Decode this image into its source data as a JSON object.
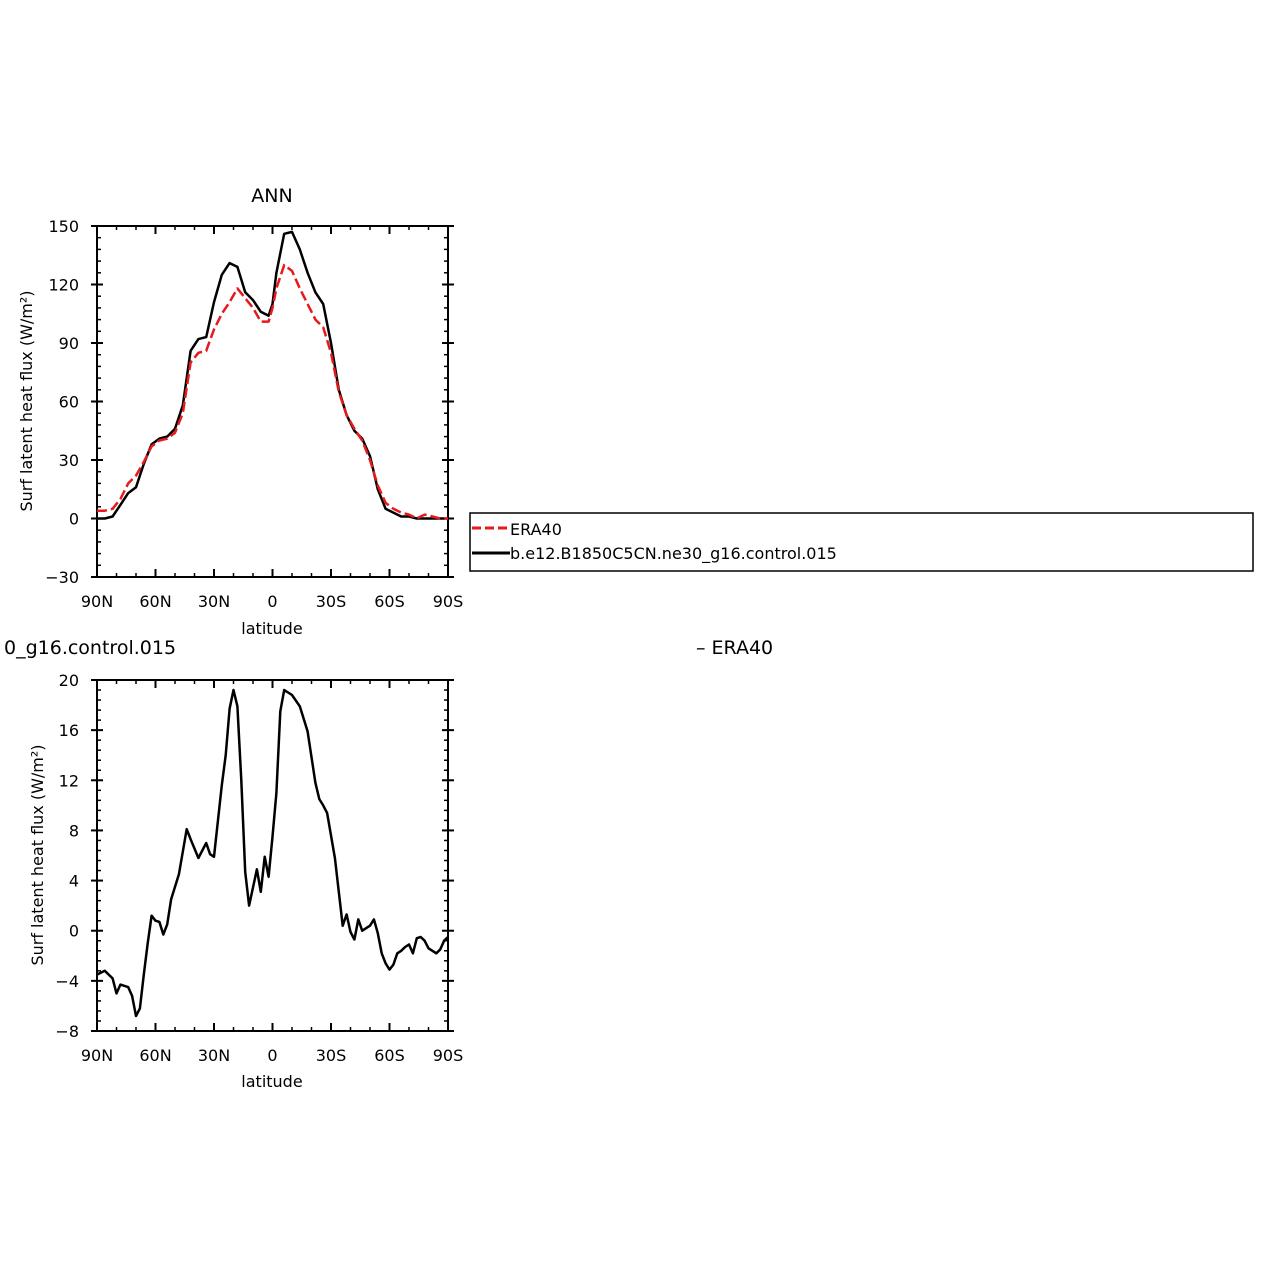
{
  "chart_data": [
    {
      "type": "line",
      "title": "ANN",
      "xlabel": "latitude",
      "ylabel": "Surf latent heat flux (W/m²)",
      "xlim": [
        90,
        -90
      ],
      "ylim": [
        -30,
        150
      ],
      "xticks": [
        90,
        60,
        30,
        0,
        -30,
        -60,
        -90
      ],
      "xtick_labels": [
        "90N",
        "60N",
        "30N",
        "0",
        "30S",
        "60S",
        "90S"
      ],
      "yticks": [
        -30,
        0,
        30,
        60,
        90,
        120,
        150
      ],
      "ytick_labels": [
        "−30",
        "0",
        "30",
        "60",
        "90",
        "120",
        "150"
      ],
      "legend": "right",
      "series": [
        {
          "name": "ERA40",
          "color": "#e8191b",
          "dash": true,
          "x": [
            90,
            86,
            82,
            78,
            74,
            70,
            66,
            62,
            58,
            54,
            50,
            46,
            42,
            38,
            34,
            30,
            26,
            22,
            18,
            14,
            10,
            6,
            2,
            0,
            -2,
            -6,
            -10,
            -14,
            -18,
            -22,
            -26,
            -30,
            -34,
            -38,
            -42,
            -46,
            -50,
            -54,
            -58,
            -62,
            -66,
            -70,
            -74,
            -78,
            -82,
            -86,
            -90
          ],
          "y": [
            4,
            4,
            5,
            10,
            18,
            22,
            29,
            37,
            40,
            41,
            44,
            54,
            80,
            85,
            86,
            97,
            105,
            111,
            118,
            113,
            108,
            101,
            101,
            108,
            118,
            130,
            127,
            118,
            110,
            102,
            98,
            85,
            65,
            53,
            46,
            40,
            30,
            17,
            8,
            5,
            3,
            2,
            0,
            2,
            1,
            0,
            0
          ]
        },
        {
          "name": "b.e12.B1850C5CN.ne30_g16.control.015",
          "color": "#000000",
          "dash": false,
          "x": [
            90,
            86,
            82,
            78,
            74,
            70,
            66,
            62,
            58,
            54,
            50,
            46,
            42,
            38,
            34,
            30,
            26,
            22,
            18,
            14,
            10,
            6,
            2,
            0,
            -2,
            -6,
            -10,
            -14,
            -18,
            -22,
            -26,
            -30,
            -34,
            -38,
            -42,
            -46,
            -50,
            -54,
            -58,
            -62,
            -66,
            -70,
            -74,
            -78,
            -82,
            -86,
            -90
          ],
          "y": [
            0,
            0,
            1,
            7,
            13,
            16,
            28,
            38,
            41,
            42,
            46,
            58,
            86,
            92,
            93,
            111,
            125,
            131,
            129,
            116,
            112,
            106,
            104,
            110,
            126,
            146,
            147,
            138,
            126,
            116,
            110,
            90,
            66,
            53,
            45,
            41,
            32,
            15,
            5,
            3,
            1,
            1,
            0,
            0,
            0,
            0,
            0
          ]
        }
      ]
    },
    {
      "type": "line",
      "title_left": "0_g16.control.015",
      "title_right": "– ERA40",
      "xlabel": "latitude",
      "ylabel": "Surf latent heat flux (W/m²)",
      "xlim": [
        90,
        -90
      ],
      "ylim": [
        -8,
        20
      ],
      "xticks": [
        90,
        60,
        30,
        0,
        -30,
        -60,
        -90
      ],
      "xtick_labels": [
        "90N",
        "60N",
        "30N",
        "0",
        "30S",
        "60S",
        "90S"
      ],
      "yticks": [
        -8,
        -4,
        0,
        4,
        8,
        12,
        16,
        20
      ],
      "ytick_labels": [
        "−8",
        "−4",
        "0",
        "4",
        "8",
        "12",
        "16",
        "20"
      ],
      "series": [
        {
          "color": "#000000",
          "dash": false,
          "x": [
            90,
            86,
            82,
            80,
            78,
            74,
            72,
            70,
            68,
            66,
            64,
            62,
            60,
            58,
            56,
            54,
            52,
            48,
            44,
            42,
            38,
            34,
            32,
            30,
            26,
            24,
            22,
            20,
            18,
            16,
            14,
            12,
            8,
            6,
            4,
            2,
            0,
            -2,
            -4,
            -6,
            -10,
            -14,
            -18,
            -22,
            -24,
            -26,
            -28,
            -32,
            -36,
            -38,
            -40,
            -42,
            -44,
            -46,
            -48,
            -50,
            -52,
            -54,
            -56,
            -58,
            -60,
            -62,
            -64,
            -66,
            -68,
            -70,
            -72,
            -74,
            -76,
            -78,
            -80,
            -82,
            -84,
            -86,
            -88,
            -90
          ],
          "y": [
            -3.5,
            -3.2,
            -3.8,
            -5.0,
            -4.3,
            -4.5,
            -5.2,
            -6.8,
            -6.2,
            -3.5,
            -1.0,
            1.2,
            0.8,
            0.7,
            -0.3,
            0.5,
            2.5,
            4.5,
            8.1,
            7.3,
            5.8,
            7.0,
            6.1,
            5.9,
            11.6,
            14.0,
            17.7,
            19.2,
            17.9,
            12.0,
            4.7,
            2.0,
            4.9,
            3.1,
            5.9,
            4.3,
            7.5,
            11.0,
            17.5,
            19.2,
            18.8,
            17.9,
            15.9,
            11.8,
            10.5,
            10.0,
            9.4,
            5.8,
            0.4,
            1.3,
            -0.1,
            -0.7,
            0.9,
            0.0,
            0.2,
            0.4,
            0.9,
            -0.2,
            -1.8,
            -2.6,
            -3.1,
            -2.7,
            -1.8,
            -1.6,
            -1.3,
            -1.1,
            -1.8,
            -0.6,
            -0.5,
            -0.8,
            -1.4,
            -1.6,
            -1.8,
            -1.5,
            -0.8,
            -0.5
          ]
        }
      ]
    }
  ],
  "legend": {
    "items": [
      {
        "label": "ERA40",
        "color": "#e8191b",
        "dash": true
      },
      {
        "label": "b.e12.B1850C5CN.ne30_g16.control.015",
        "color": "#000000",
        "dash": false
      }
    ]
  }
}
